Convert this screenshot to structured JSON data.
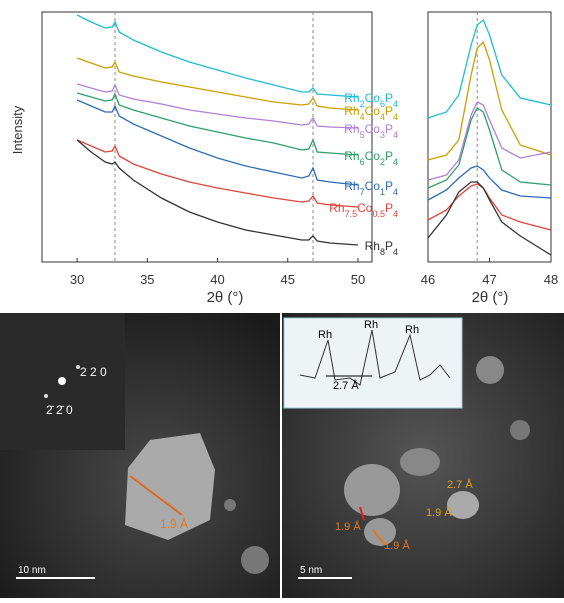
{
  "chart_data": [
    {
      "type": "line",
      "ylabel": "Intensity",
      "xlabel": "2θ (°)",
      "xlim": [
        27.5,
        51
      ],
      "xticks": [
        30,
        35,
        40,
        45,
        50
      ],
      "ylim": [
        0,
        100
      ],
      "reference_lines": [
        32.7,
        46.8
      ],
      "x": [
        30,
        31,
        32,
        32.5,
        32.7,
        33,
        34,
        36,
        38,
        40,
        42,
        44,
        46,
        46.5,
        46.8,
        47.1,
        48,
        50
      ],
      "series": [
        {
          "name": "Rh2Co6P4",
          "color": "#1fbcd2",
          "values": [
            98.8,
            96,
            93.6,
            94,
            96,
            92,
            88.8,
            84,
            80,
            76.8,
            73.6,
            70.8,
            68,
            68,
            69.6,
            67.2,
            66.8,
            66
          ]
        },
        {
          "name": "Rh4Co4P4",
          "color": "#c8a000",
          "values": [
            81.6,
            79.6,
            77.6,
            78,
            80,
            76,
            74.4,
            72,
            70,
            68,
            66,
            64,
            62.8,
            63.2,
            65.6,
            62.4,
            61.6,
            60.8
          ]
        },
        {
          "name": "Rh5Co3P4",
          "color": "#b07fd6",
          "values": [
            71.2,
            69.6,
            68,
            68.4,
            70.8,
            66.8,
            65.2,
            63.2,
            60.8,
            59.2,
            57.6,
            56.4,
            54.8,
            55.2,
            57.6,
            54.4,
            54,
            53.6
          ]
        },
        {
          "name": "Rh6Co2P4",
          "color": "#2e9e6a",
          "values": [
            67.6,
            66,
            64.4,
            64.8,
            67.2,
            62.8,
            60.8,
            57.6,
            54.4,
            52,
            49.6,
            47.6,
            44.8,
            45.2,
            48.8,
            44,
            43.6,
            42.8
          ]
        },
        {
          "name": "Rh7Co1P4",
          "color": "#2b6cb8",
          "values": [
            64.8,
            62.4,
            60,
            60,
            62.4,
            58.4,
            55.2,
            50.4,
            45.6,
            41.6,
            38.4,
            36,
            33.6,
            34.4,
            37.6,
            32.8,
            32,
            30.8
          ]
        },
        {
          "name": "Rh7.5Co0.5P4",
          "color": "#e0443a",
          "values": [
            48.8,
            46.4,
            44,
            44.4,
            46.4,
            42.4,
            39.2,
            35.2,
            32,
            29.6,
            27.6,
            25.6,
            24,
            24.4,
            26.4,
            23.6,
            22.8,
            22
          ]
        },
        {
          "name": "Rh8P4",
          "color": "#333333",
          "values": [
            48.8,
            44,
            40,
            39.2,
            40,
            37.6,
            32.8,
            25.6,
            20,
            16,
            12.8,
            10.8,
            8.8,
            8.8,
            10.4,
            8.4,
            7.6,
            6.8
          ]
        }
      ]
    },
    {
      "type": "line",
      "xlabel": "2θ (°)",
      "xlim": [
        46,
        48
      ],
      "xticks": [
        46,
        47,
        48
      ],
      "ylim": [
        0,
        100
      ],
      "reference_lines": [
        46.8
      ],
      "x": [
        46,
        46.3,
        46.5,
        46.7,
        46.8,
        46.9,
        47,
        47.2,
        47.5,
        48
      ],
      "series": [
        {
          "color": "#1fbcd2",
          "values": [
            57.6,
            60,
            66.8,
            86.8,
            94.8,
            96.8,
            90.8,
            74.8,
            65.6,
            62.8
          ]
        },
        {
          "color": "#c8a000",
          "values": [
            40.8,
            42.8,
            48.8,
            74.8,
            85.6,
            88,
            80.8,
            60.8,
            46.8,
            42.8
          ]
        },
        {
          "color": "#b07fd6",
          "values": [
            32.8,
            34.8,
            40.8,
            58.8,
            64,
            62.8,
            56.8,
            45.6,
            41.6,
            44
          ]
        },
        {
          "color": "#2e9e6a",
          "values": [
            29.6,
            32.8,
            38.8,
            56.8,
            61.6,
            60,
            52.8,
            36.8,
            32,
            30.8
          ]
        },
        {
          "color": "#2b6cb8",
          "values": [
            24.8,
            28.8,
            33.6,
            37.6,
            38.4,
            36.8,
            33.6,
            28.8,
            26.4,
            25.6
          ]
        },
        {
          "color": "#e0443a",
          "values": [
            16.8,
            20.8,
            26.4,
            30.4,
            31.2,
            29.6,
            25.6,
            18.8,
            16,
            12.8
          ]
        },
        {
          "color": "#333333",
          "values": [
            9.6,
            18.8,
            28,
            32,
            32,
            29.6,
            24.8,
            16,
            10.4,
            2.8
          ]
        }
      ]
    }
  ],
  "tem_images": [
    {
      "scale_bar": "10 nm",
      "fft_labels": [
        "2 2 0",
        "2̄ 2̄ 0"
      ],
      "annotations": [
        "1.9 Å"
      ]
    },
    {
      "scale_bar": "5 nm",
      "inset_labels": [
        "Rh",
        "Rh",
        "Rh",
        "2.7 Å"
      ],
      "annotations": [
        "2.7 Å",
        "1.9 Å",
        "1.9 Å",
        "1.9 Å"
      ]
    }
  ]
}
